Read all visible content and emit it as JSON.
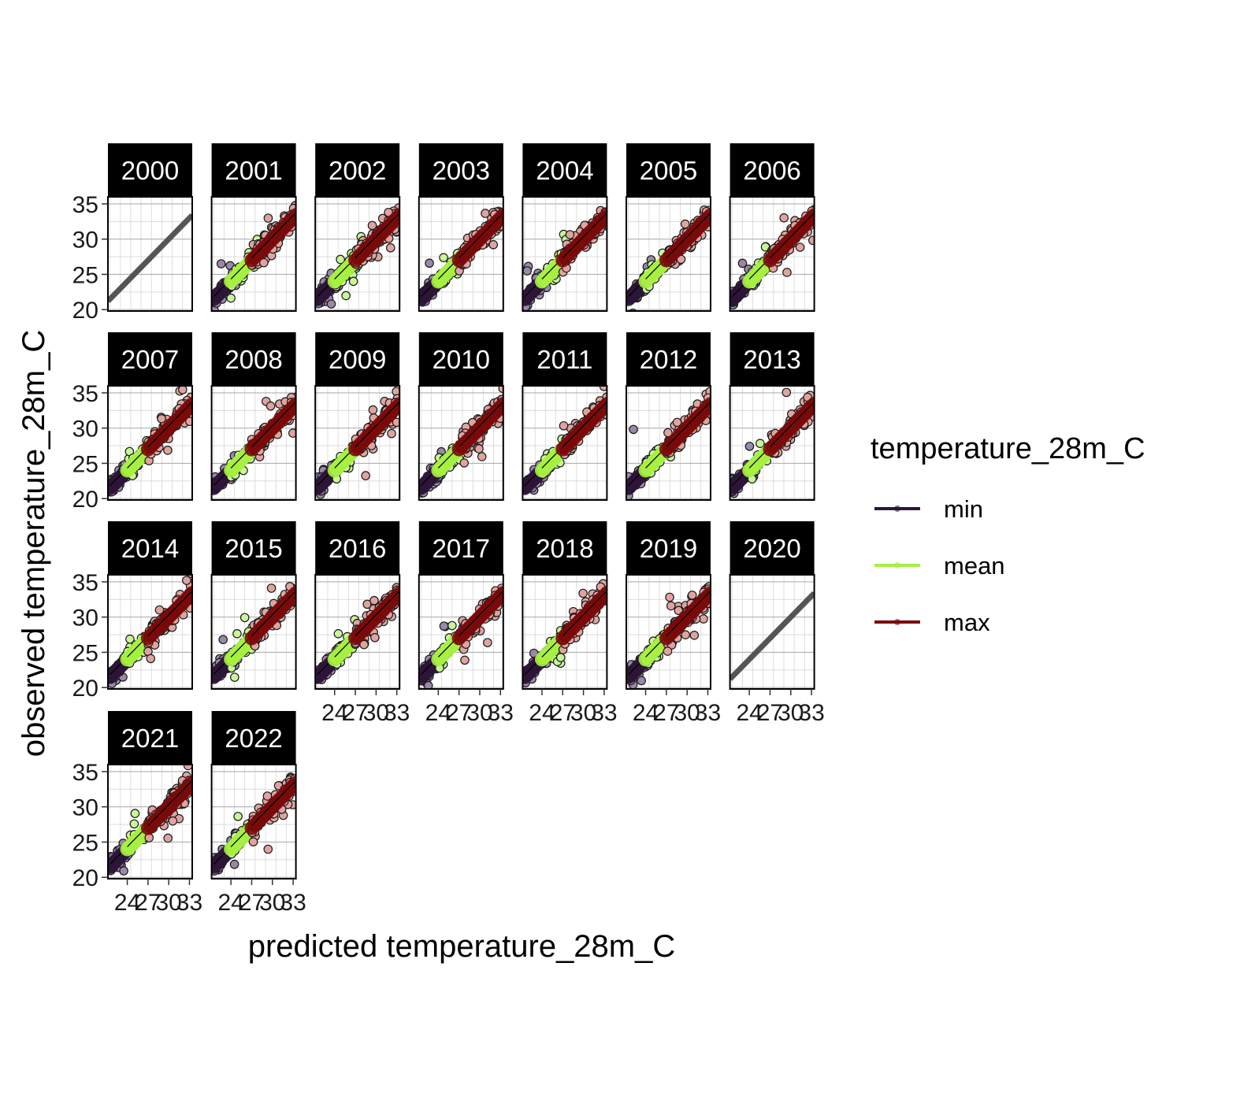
{
  "chart_data": {
    "type": "scatter",
    "facet_by": "year",
    "panels": [
      "2000",
      "2001",
      "2002",
      "2003",
      "2004",
      "2005",
      "2006",
      "2007",
      "2008",
      "2009",
      "2010",
      "2011",
      "2012",
      "2013",
      "2014",
      "2015",
      "2016",
      "2017",
      "2018",
      "2019",
      "2020",
      "2021",
      "2022"
    ],
    "empty_panels": [
      "2000",
      "2020"
    ],
    "xlabel": "predicted temperature_28m_C",
    "ylabel": "observed temperature_28m_C",
    "xlim": [
      21.2,
      33.4
    ],
    "ylim": [
      19.8,
      36
    ],
    "xticks": [
      24,
      27,
      30,
      33
    ],
    "yticks": [
      20,
      25,
      30,
      35
    ],
    "reference_line": {
      "slope": 1,
      "intercept": 0,
      "color": "#555555"
    },
    "legend": {
      "title": "temperature_28m_C",
      "placement": "right",
      "entries": [
        {
          "name": "min",
          "color": "#2d1538"
        },
        {
          "name": "mean",
          "color": "#a6f041"
        },
        {
          "name": "max",
          "color": "#7a0a0a"
        }
      ]
    },
    "series": [
      {
        "name": "min",
        "color": "#2d1538",
        "x_range": [
          21.5,
          25.0
        ],
        "y_range": [
          20.5,
          25.5
        ]
      },
      {
        "name": "mean",
        "color": "#a6f041",
        "x_range": [
          24.0,
          28.0
        ],
        "y_range": [
          23.0,
          29.5
        ]
      },
      {
        "name": "max",
        "color": "#7a0a0a",
        "x_range": [
          27.0,
          33.4
        ],
        "y_range": [
          24.0,
          35.5
        ]
      }
    ],
    "grid": true
  }
}
